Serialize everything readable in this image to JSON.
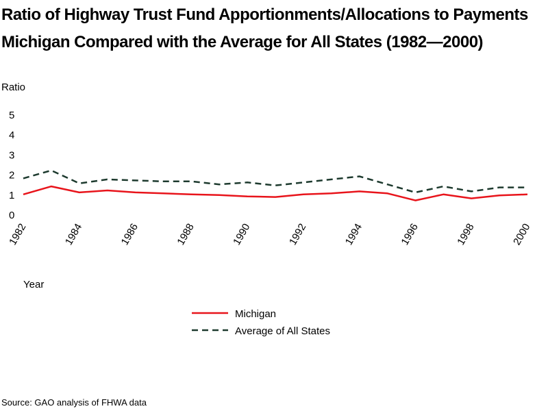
{
  "title_lines": [
    "Ratio of Highway Trust Fund Apportionments/Allocations to Payments",
    "Michigan Compared with the Average for All States (1982—2000)"
  ],
  "source": "Source: GAO analysis of FHWA data",
  "chart_data": {
    "type": "line",
    "title": "Ratio of Highway Trust Fund Apportionments/Allocations to Payments Michigan Compared with the Average for All States (1982—2000)",
    "xlabel": "Year",
    "ylabel": "Ratio",
    "ylim": [
      0,
      5
    ],
    "yticks": [
      "0",
      "1",
      "2",
      "3",
      "4",
      "5"
    ],
    "x": [
      1982,
      1983,
      1984,
      1985,
      1986,
      1987,
      1988,
      1989,
      1990,
      1991,
      1992,
      1993,
      1994,
      1995,
      1996,
      1997,
      1998,
      1999,
      2000
    ],
    "xtick_labels": [
      "1982",
      "1984",
      "1986",
      "1988",
      "1990",
      "1992",
      "1994",
      "1996",
      "1998",
      "2000"
    ],
    "grid": false,
    "legend_position": "bottom-center",
    "series": [
      {
        "name": "Michigan",
        "style": "solid",
        "color": "#e8141b",
        "values": [
          1.0,
          1.4,
          1.1,
          1.2,
          1.1,
          1.05,
          1.0,
          0.97,
          0.9,
          0.87,
          1.0,
          1.05,
          1.15,
          1.05,
          0.7,
          1.0,
          0.8,
          0.95,
          1.0
        ]
      },
      {
        "name": "Average of All States",
        "style": "dashed",
        "color": "#1d3a2e",
        "values": [
          1.8,
          2.2,
          1.55,
          1.75,
          1.7,
          1.65,
          1.65,
          1.5,
          1.6,
          1.45,
          1.6,
          1.75,
          1.9,
          1.5,
          1.1,
          1.4,
          1.15,
          1.35,
          1.35
        ]
      }
    ]
  }
}
